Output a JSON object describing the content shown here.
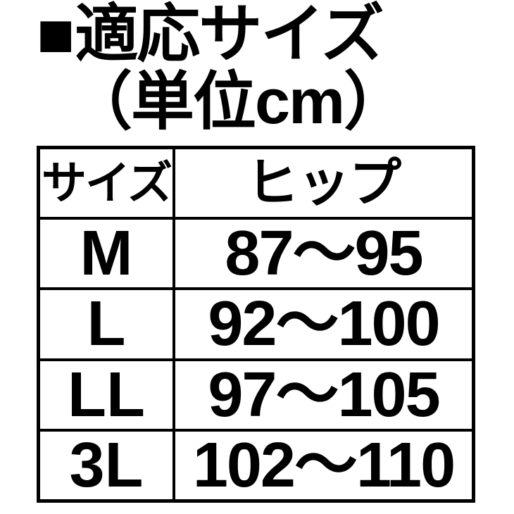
{
  "page": {
    "background_color": "#ffffff",
    "text_color": "#000000",
    "border_color": "#000000"
  },
  "title": {
    "bullet": "■",
    "text": "適応サイズ"
  },
  "subtitle": "（単位cm）",
  "table": {
    "headers": {
      "size": "サイズ",
      "hip": "ヒップ"
    },
    "rows": [
      {
        "size": "M",
        "hip": "87〜95"
      },
      {
        "size": "L",
        "hip": "92〜100"
      },
      {
        "size": "LL",
        "hip": "97〜105"
      },
      {
        "size": "3L",
        "hip": "102〜110"
      }
    ]
  },
  "chart_data": {
    "type": "table",
    "title": "■適応サイズ（単位cm）",
    "unit": "cm",
    "columns": [
      "サイズ",
      "ヒップ"
    ],
    "rows": [
      [
        "M",
        "87〜95"
      ],
      [
        "L",
        "92〜100"
      ],
      [
        "LL",
        "97〜105"
      ],
      [
        "3L",
        "102〜110"
      ]
    ],
    "hip_ranges": [
      {
        "size": "M",
        "hip_min": 87,
        "hip_max": 95
      },
      {
        "size": "L",
        "hip_min": 92,
        "hip_max": 100
      },
      {
        "size": "LL",
        "hip_min": 97,
        "hip_max": 105
      },
      {
        "size": "3L",
        "hip_min": 102,
        "hip_max": 110
      }
    ]
  }
}
